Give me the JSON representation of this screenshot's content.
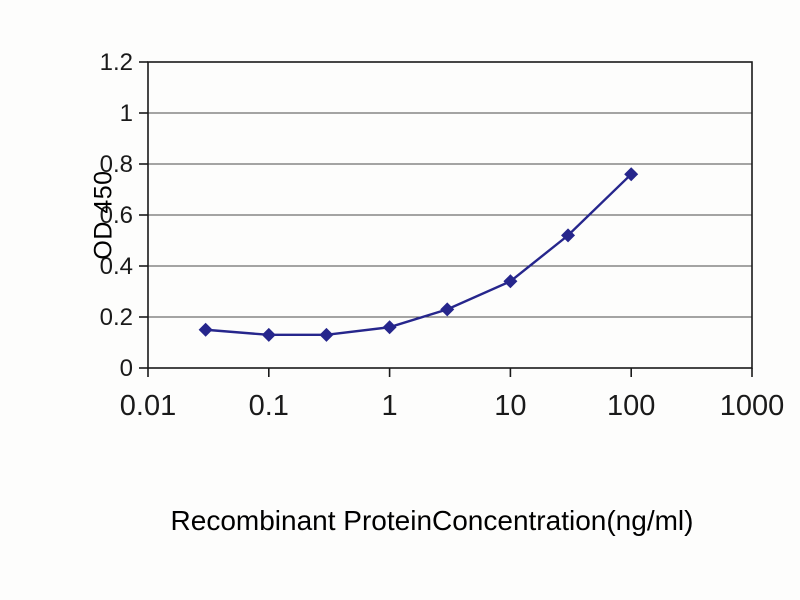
{
  "chart_data": {
    "type": "line",
    "title": "",
    "xlabel": "Recombinant ProteinConcentration(ng/ml)",
    "ylabel": "OD 450",
    "x_scale": "log",
    "xlim": [
      0.01,
      1000
    ],
    "ylim": [
      0,
      1.2
    ],
    "x_ticks": [
      0.01,
      0.1,
      1,
      10,
      100,
      1000
    ],
    "x_tick_labels": [
      "0.01",
      "0.1",
      "1",
      "10",
      "100",
      "1000"
    ],
    "y_ticks": [
      0,
      0.2,
      0.4,
      0.6,
      0.8,
      1,
      1.2
    ],
    "y_tick_labels": [
      "0",
      "0.2",
      "0.4",
      "0.6",
      "0.8",
      "1",
      "1.2"
    ],
    "grid": "horizontal",
    "legend": "none",
    "series": [
      {
        "name": "OD 450",
        "marker": "diamond",
        "color": "#26268c",
        "x": [
          0.03,
          0.1,
          0.3,
          1,
          3,
          10,
          30,
          100
        ],
        "y": [
          0.15,
          0.13,
          0.13,
          0.16,
          0.23,
          0.34,
          0.52,
          0.76
        ]
      }
    ]
  },
  "colors": {
    "background": "#fdfdfc",
    "frame": "#1a1a1a",
    "grid": "#4a4a4a",
    "text": "#1a1a1a"
  }
}
